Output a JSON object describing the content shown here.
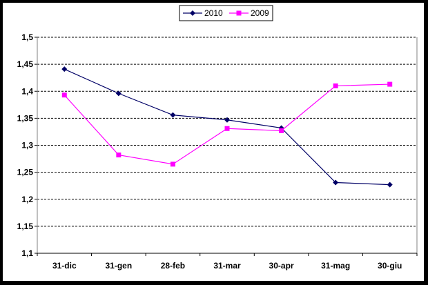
{
  "chart_data": {
    "type": "line",
    "categories": [
      "31-dic",
      "31-gen",
      "28-feb",
      "31-mar",
      "30-apr",
      "31-mag",
      "30-giu"
    ],
    "series": [
      {
        "name": "2010",
        "color": "#000066",
        "marker": "diamond",
        "values": [
          1.441,
          1.396,
          1.356,
          1.347,
          1.332,
          1.231,
          1.227
        ]
      },
      {
        "name": "2009",
        "color": "#ff00ff",
        "marker": "square",
        "values": [
          1.393,
          1.282,
          1.265,
          1.331,
          1.327,
          1.41,
          1.413
        ]
      }
    ],
    "ylim": [
      1.1,
      1.5
    ],
    "y_ticks": [
      "1,1",
      "1,15",
      "1,2",
      "1,25",
      "1,3",
      "1,35",
      "1,4",
      "1,45",
      "1,5"
    ],
    "grid": "horizontal dashed",
    "legend_position": "top-center"
  }
}
